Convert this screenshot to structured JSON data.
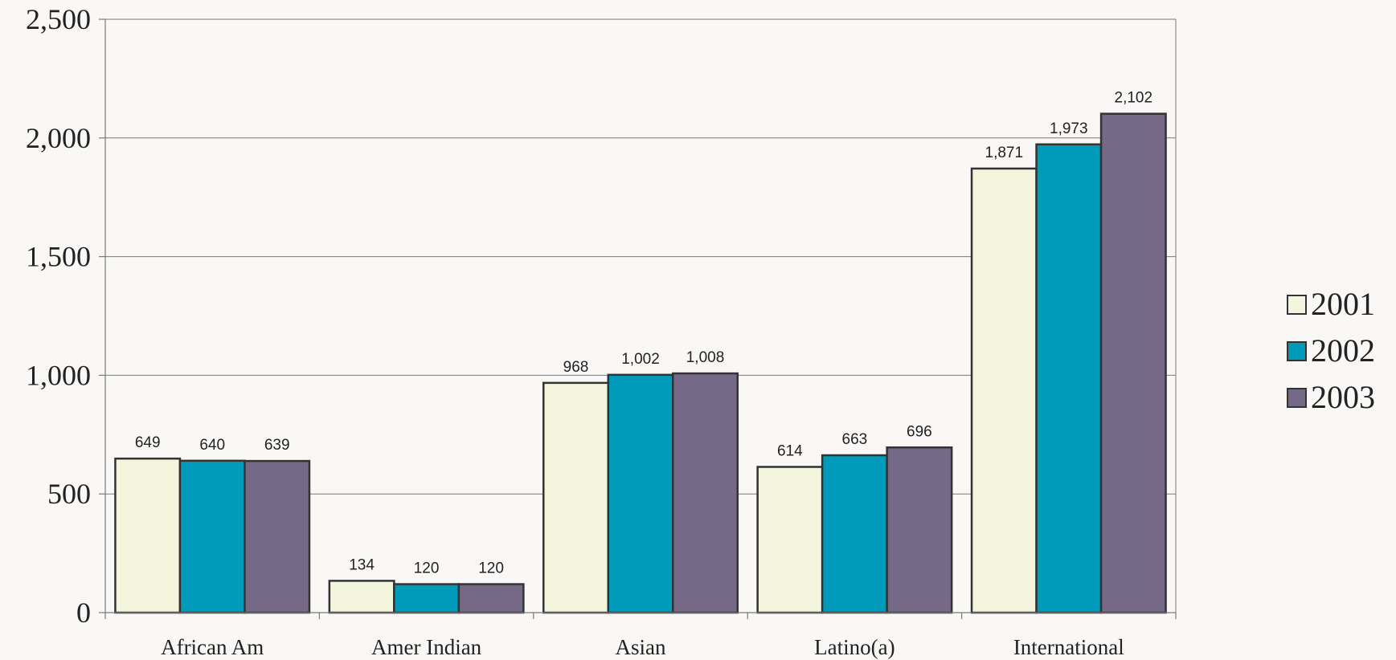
{
  "chart_data": {
    "type": "bar",
    "title": "",
    "xlabel": "",
    "ylabel": "",
    "categories": [
      "African Am",
      "Amer Indian",
      "Asian",
      "Latino(a)",
      "International"
    ],
    "series": [
      {
        "name": "2001",
        "color": "#f3f5dc",
        "values": [
          649,
          134,
          968,
          614,
          1871
        ]
      },
      {
        "name": "2002",
        "color": "#009bbb",
        "values": [
          640,
          120,
          1002,
          663,
          1973
        ]
      },
      {
        "name": "2003",
        "color": "#766887",
        "values": [
          639,
          120,
          1008,
          696,
          2102
        ]
      }
    ],
    "ylim": [
      0,
      2500
    ],
    "yticks": [
      0,
      500,
      1000,
      1500,
      2000,
      2500
    ],
    "ytick_labels": [
      "0",
      "500",
      "1,000",
      "1,500",
      "2,000",
      "2,500"
    ],
    "data_labels": [
      [
        "649",
        "134",
        "968",
        "614",
        "1,871"
      ],
      [
        "640",
        "120",
        "1,002",
        "663",
        "1,973"
      ],
      [
        "639",
        "120",
        "1,008",
        "696",
        "2,102"
      ]
    ],
    "grid": true,
    "legend_position": "right",
    "background_color": "#f9f8f6"
  }
}
